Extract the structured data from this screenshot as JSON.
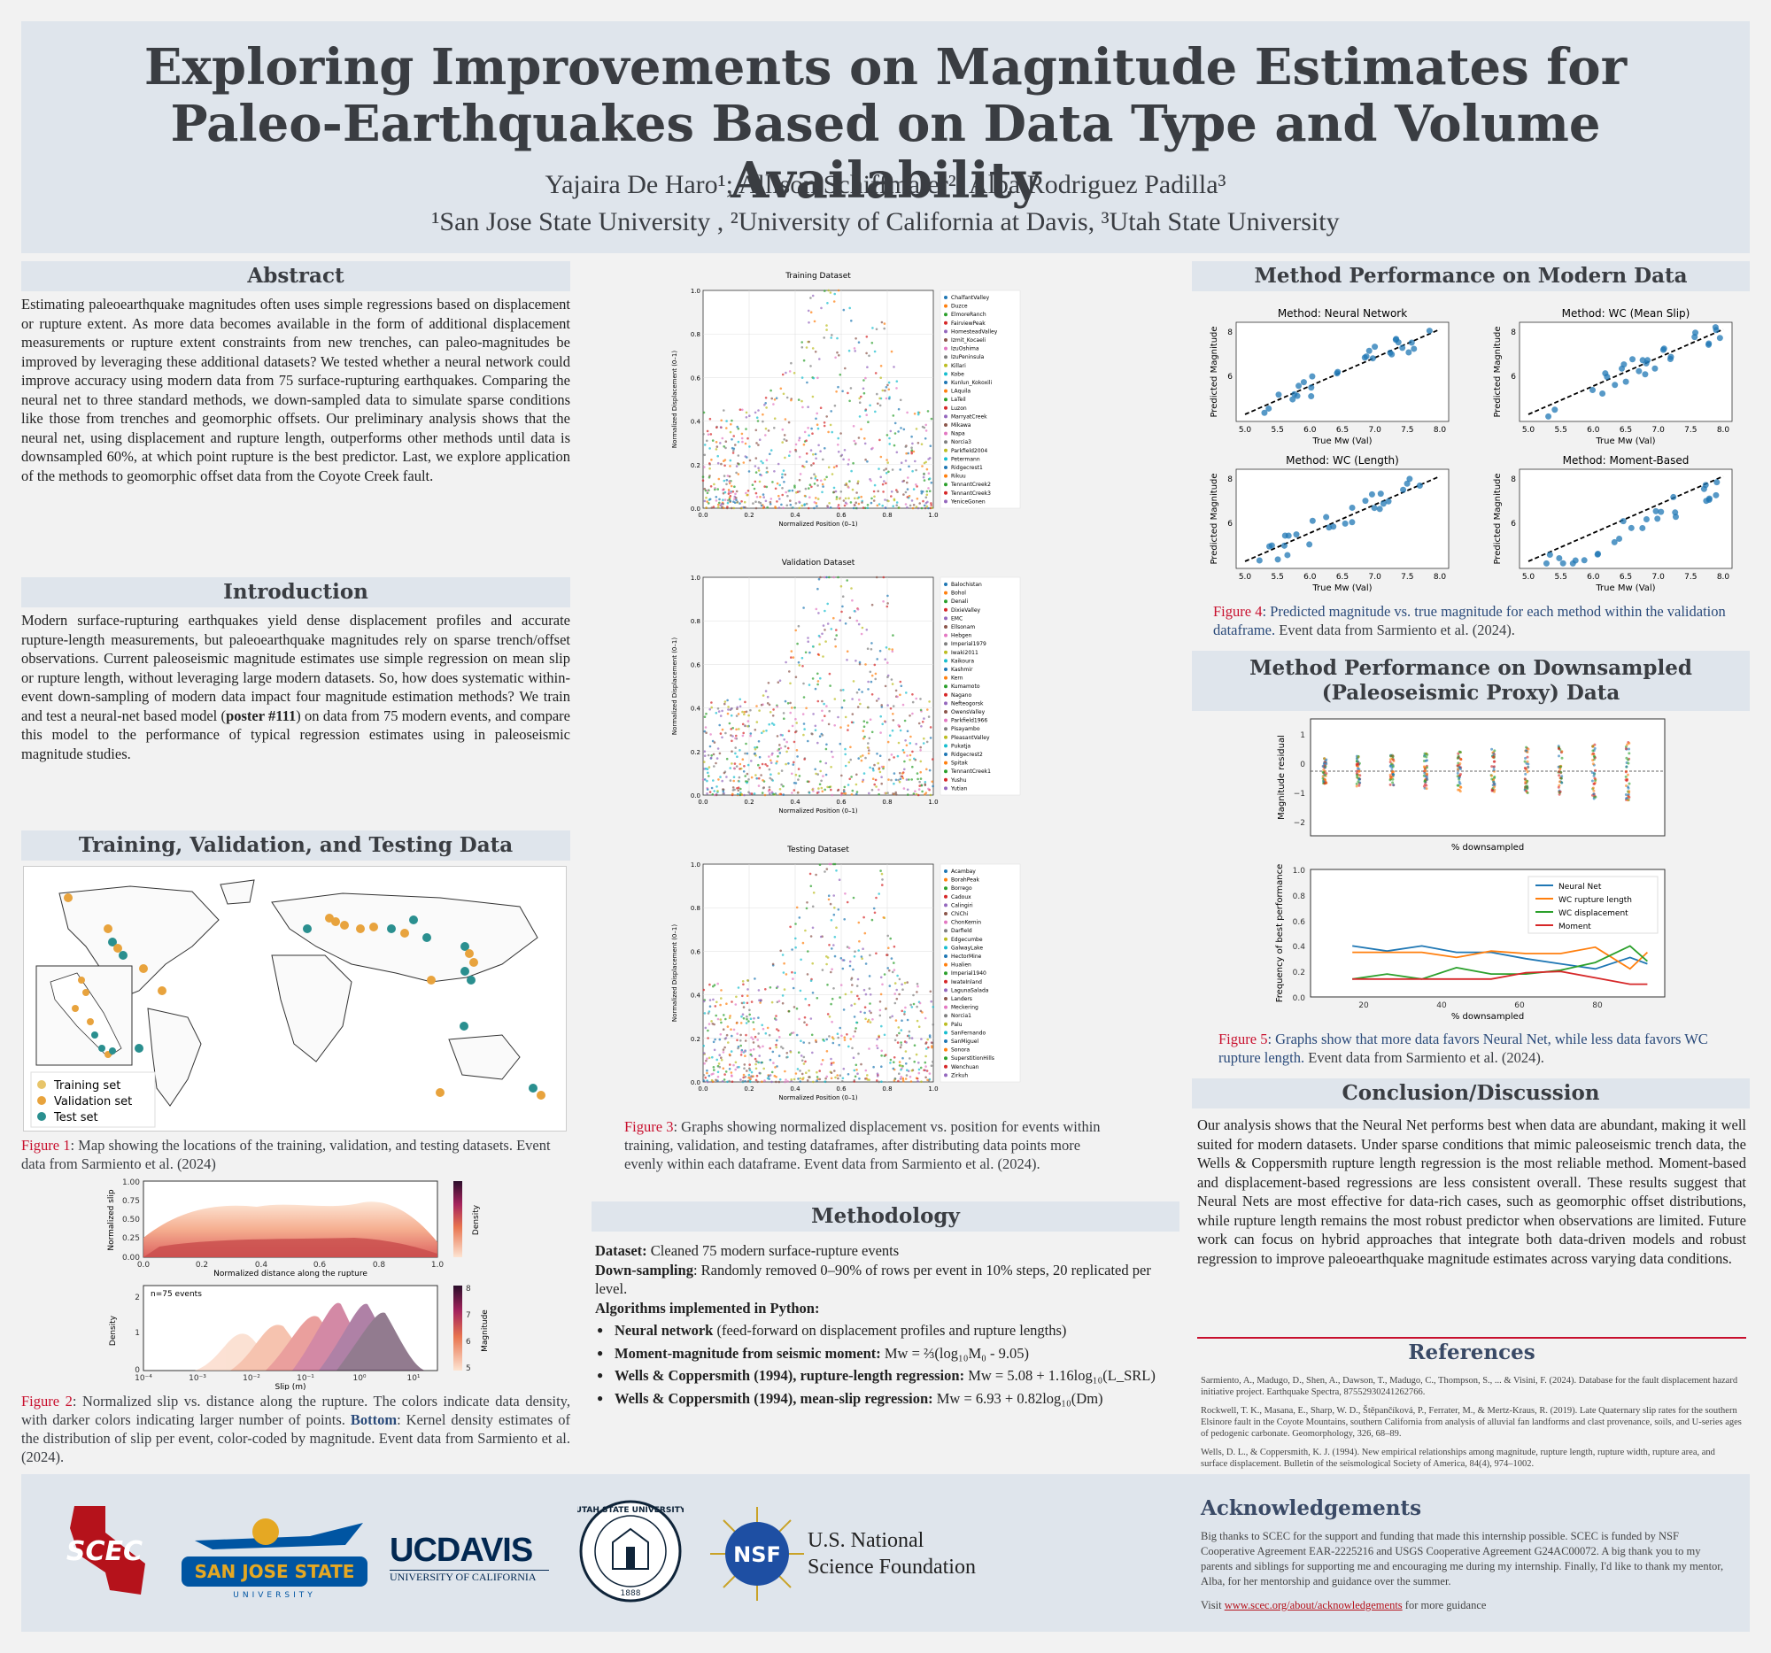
{
  "header": {
    "title_l1": "Exploring Improvements on Magnitude Estimates for",
    "title_l2": "Paleo-Earthquakes Based on Data Type and Volume Availability",
    "authors": "Yajaira De Haro¹; Allison Schiffmaier²; Alba Rodriguez Padilla³",
    "affiliations": "¹San Jose State University , ²University of California at Davis, ³Utah State University"
  },
  "abstract": {
    "heading": "Abstract",
    "text": "Estimating paleoearthquake magnitudes often uses simple regressions based on displacement or rupture extent. As more data becomes available in the form of additional displacement measurements or rupture extent constraints from new trenches, can paleo-magnitudes be improved by leveraging these additional datasets? We tested whether a neural network could improve accuracy using modern data from 75 surface-rupturing earthquakes. Comparing the neural net to three standard methods, we down-sampled data to simulate sparse conditions like those from trenches and geomorphic offsets. Our preliminary analysis shows that the neural net, using displacement and rupture length, outperforms other methods until data is downsampled 60%, at which point rupture is the best predictor. Last, we explore application of the methods to geomorphic offset data from the Coyote Creek fault."
  },
  "introduction": {
    "heading": "Introduction",
    "text_a": "Modern surface-rupturing earthquakes yield dense displacement profiles and accurate rupture-length measurements, but paleoearthquake magnitudes rely on sparse trench/offset observations. Current paleoseismic magnitude estimates use simple regression on mean slip or rupture length, without leveraging large modern datasets. So, how does systematic within-event down-sampling of modern data impact four magnitude estimation methods? We train and test a neural-net based model (",
    "text_bold": "poster #111",
    "text_b": ") on data from 75 modern events, and compare this model to the performance of typical regression estimates using in paleoseismic magnitude studies."
  },
  "training": {
    "heading": "Training, Validation, and Testing Data",
    "legend": [
      "Training set",
      "Validation set",
      "Test set"
    ],
    "fig1_label": "Figure 1",
    "fig1_text": ": Map showing the locations of the training, validation, and testing datasets. Event data from Sarmiento et al. (2024)",
    "kde_top": {
      "ylabel": "Normalized slip",
      "xlabel": "Normalized distance along the rupture",
      "cbar": "Density",
      "yticks": [
        "1.00",
        "0.75",
        "0.50",
        "0.25",
        "0.00"
      ],
      "xticks": [
        "0.0",
        "0.2",
        "0.4",
        "0.6",
        "0.8",
        "1.0"
      ]
    },
    "kde_bottom": {
      "ylabel": "Density",
      "xlabel": "Slip (m)",
      "cbar": "Magnitude",
      "note": "n=75 events",
      "xticks": [
        "10⁻⁴",
        "10⁻³",
        "10⁻²",
        "10⁻¹",
        "10⁰",
        "10¹"
      ],
      "yticks": [
        "2",
        "1",
        "0"
      ],
      "cticks": [
        "8",
        "7",
        "6",
        "5"
      ]
    },
    "fig2_label": "Figure 2",
    "fig2_top": "Top",
    "fig2_text_a": ": Normalized slip vs. distance along the rupture. The colors indicate data density, with darker colors indicating larger number of points. ",
    "fig2_bottom": "Bottom",
    "fig2_text_b": ": Kernel density estimates of the distribution of slip per event, color-coded by magnitude. Event data from Sarmiento et al. (2024)."
  },
  "fig3": {
    "panels": [
      {
        "title": "Training Dataset",
        "events": [
          "ChalfantValley",
          "Duzce",
          "ElmoreRanch",
          "FairviewPeak",
          "HomesteadValley",
          "Izmit_Kocaeli",
          "IzuOshima",
          "IzuPeninsula",
          "Killari",
          "Kobe",
          "Kunlun_Kokoxili",
          "LAquila",
          "LaTeil",
          "Luzon",
          "MarryatCreek",
          "Mikawa",
          "Napa",
          "Norcia3",
          "Parkfield2004",
          "Petermann",
          "Ridgecrest1",
          "Rikuu",
          "TennantCreek2",
          "TennantCreek3",
          "YeniceGonen"
        ]
      },
      {
        "title": "Validation Dataset",
        "events": [
          "Balochistan",
          "Bohol",
          "Denali",
          "DixieValley",
          "EMC",
          "Ellsonam",
          "Hebgen",
          "Imperial1979",
          "Iwaki2011",
          "Kaikoura",
          "Kashmir",
          "Kern",
          "Kumamoto",
          "Nagano",
          "Nefteogorsk",
          "OwensValley",
          "Parkfield1966",
          "Pisayambo",
          "PleasantValley",
          "Pukatja",
          "Ridgecrest2",
          "Spitak",
          "TennantCreek1",
          "Yushu",
          "Yutian"
        ]
      },
      {
        "title": "Testing Dataset",
        "events": [
          "Acambay",
          "BorahPeak",
          "Borrego",
          "Cadoux",
          "Calingiri",
          "ChiChi",
          "ChonKemin",
          "Darfield",
          "Edgecumbe",
          "GalwayLake",
          "HectorMine",
          "Hualien",
          "Imperial1940",
          "IwateInland",
          "LagunaSalada",
          "Landers",
          "Meckering",
          "Norcia1",
          "Palu",
          "SanFernando",
          "SanMiguel",
          "Sonora",
          "SuperstitionHills",
          "Wenchuan",
          "Zirkuh"
        ]
      }
    ],
    "ylabel": "Normalized Displacement (0–1)",
    "xlabel": "Normalized Position (0–1)",
    "yticks": [
      "1.0",
      "0.8",
      "0.6",
      "0.4",
      "0.2",
      "0.0"
    ],
    "xticks": [
      "0.0",
      "0.2",
      "0.4",
      "0.6",
      "0.8",
      "1.0"
    ],
    "caption_label": "Figure 3",
    "caption_text": ": Graphs showing normalized displacement vs. position for events within training, validation, and testing dataframes, after distributing data points more evenly within each dataframe. Event data from Sarmiento et al. (2024)."
  },
  "methodology": {
    "heading": "Methodology",
    "dataset_label": "Dataset:",
    "dataset_text": " Cleaned 75 modern surface-rupture events",
    "down_label": "Down-sampling",
    "down_text": ": Randomly removed 0–90% of rows per event in 10% steps, 20 replicated per level.",
    "algos_label": "Algorithms implemented in Python:",
    "items": [
      {
        "bold": "Neural network",
        "text": " (feed-forward on displacement profiles and rupture lengths)"
      },
      {
        "bold": "Moment-magnitude from seismic moment:",
        "text": " Mw = ⅔(log₁₀M₀ - 9.05)"
      },
      {
        "bold": "Wells & Coppersmith (1994), rupture-length regression:",
        "text": " Mw = 5.08 + 1.16log₁₀(L_SRL)"
      },
      {
        "bold": "Wells & Coppersmith (1994), mean-slip regression:",
        "text": " Mw = 6.93 + 0.82log₁₀(Dm)"
      }
    ]
  },
  "modern": {
    "heading": "Method Performance on Modern Data",
    "xlabel": "True Mw (Val)",
    "ylabel": "Predicted Magnitude",
    "panels": [
      "Method: Neural Network",
      "Method: WC (Mean Slip)",
      "Method: WC (Length)",
      "Method: Moment-Based"
    ],
    "fig4_label": "Figure 4",
    "fig4_text_a": ": Predicted magnitude vs. true magnitude for each method within the validation dataframe.",
    "fig4_text_b": " Event data from Sarmiento et al. (2024)."
  },
  "downsampled": {
    "heading_l1": "Method Performance on Downsampled",
    "heading_l2": "(Paleoseismic Proxy) Data",
    "residual_ylabel": "Magnitude residual",
    "residual_xlabel": "% downsampled",
    "residual_yticks": [
      "1",
      "0",
      "−1",
      "−2"
    ],
    "freq_ylabel": "Frequency of best performance",
    "freq_xlabel": "% downsampled",
    "freq_yticks": [
      "1.0",
      "0.8",
      "0.6",
      "0.4",
      "0.2",
      "0.0"
    ],
    "freq_xticks": [
      "20",
      "40",
      "60",
      "80"
    ],
    "legend": [
      "Neural Net",
      "WC rupture length",
      "WC displacement",
      "Moment"
    ],
    "colors": [
      "#1f77b4",
      "#ff7f0e",
      "#2ca02c",
      "#d62728"
    ],
    "fig5_label": "Figure 5",
    "fig5_text_a": ": Graphs show that more data favors Neural Net, while less data favors WC rupture length.",
    "fig5_text_b": " Event data from Sarmiento et al. (2024)."
  },
  "chart_data": [
    {
      "type": "line",
      "title": "",
      "xlabel": "% downsampled",
      "ylabel": "Frequency of best performance",
      "x": [
        10,
        20,
        30,
        40,
        50,
        60,
        70,
        80,
        90,
        95
      ],
      "ylim": [
        0,
        1
      ],
      "series": [
        {
          "name": "Neural Net",
          "values": [
            0.4,
            0.36,
            0.4,
            0.35,
            0.35,
            0.3,
            0.26,
            0.22,
            0.31,
            0.26
          ]
        },
        {
          "name": "WC rupture length",
          "values": [
            0.35,
            0.35,
            0.35,
            0.31,
            0.36,
            0.34,
            0.34,
            0.39,
            0.22,
            0.35
          ]
        },
        {
          "name": "WC displacement",
          "values": [
            0.14,
            0.18,
            0.14,
            0.23,
            0.18,
            0.18,
            0.21,
            0.27,
            0.4,
            0.28
          ]
        },
        {
          "name": "Moment",
          "values": [
            0.14,
            0.14,
            0.14,
            0.14,
            0.14,
            0.19,
            0.2,
            0.15,
            0.1,
            0.1
          ]
        }
      ]
    }
  ],
  "conclusion": {
    "heading": "Conclusion/Discussion",
    "text": "Our analysis shows that the Neural Net performs best when data are abundant, making it well suited for modern datasets. Under sparse conditions that mimic paleoseismic trench data, the Wells & Coppersmith rupture length regression is the most reliable method. Moment-based and displacement-based regressions are less consistent overall. These results suggest that Neural Nets are most effective for data-rich cases, such as geomorphic offset distributions, while rupture length remains the most robust predictor when observations are limited. Future work can focus on hybrid approaches that integrate both data-driven models and robust regression to improve paleoearthquake magnitude estimates across varying data conditions."
  },
  "references": {
    "heading": "References",
    "items": [
      "Sarmiento, A., Madugo, D., Shen, A., Dawson, T., Madugo, C., Thompson, S., ... & Visini, F. (2024). Database for the fault displacement hazard initiative project. Earthquake Spectra, 87552930241262766.",
      "Rockwell, T. K., Masana, E., Sharp, W. D., Štěpančíková, P., Ferrater, M., & Mertz-Kraus, R. (2019). Late Quaternary slip rates for the southern Elsinore fault in the Coyote Mountains, southern California from analysis of alluvial fan landforms and clast provenance, soils, and U-series ages of pedogenic carbonate. Geomorphology, 326, 68–89.",
      "Wells, D. L., & Coppersmith, K. J. (1994). New empirical relationships among magnitude, rupture length, rupture width, rupture area, and surface displacement. Bulletin of the seismological Society of America, 84(4), 974–1002."
    ]
  },
  "acknowledgements": {
    "heading": "Acknowledgements",
    "text": "Big thanks to SCEC for the support and funding that made this internship possible. SCEC is funded by NSF Cooperative Agreement EAR-2225216 and USGS Cooperative Agreement G24AC00072. A big thank you to my parents and siblings for supporting me and encouraging me during my internship. Finally, I'd like to thank my mentor, Alba, for her mentorship and guidance over the summer.",
    "visit_pre": "Visit ",
    "link": "www.scec.org/about/acknowledgements",
    "visit_post": " for more guidance"
  },
  "logos": {
    "scec": "SCEC",
    "sjsu_l1": "SAN JOSE STATE",
    "sjsu_l2": "UNIVERSITY",
    "ucd_l1": "UCDAVIS",
    "ucd_l2": "UNIVERSITY OF CALIFORNIA",
    "usu_ring": "UTAH STATE UNIVERSITY",
    "usu_year": "1888",
    "nsf": "NSF",
    "nsf_l1": "U.S. National",
    "nsf_l2": "Science Foundation"
  }
}
